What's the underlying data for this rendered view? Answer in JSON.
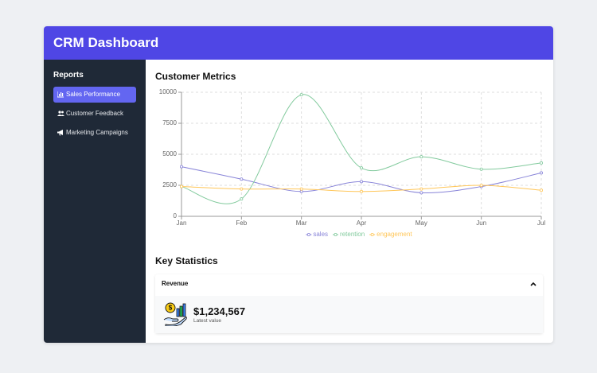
{
  "header": {
    "title": "CRM Dashboard"
  },
  "sidebar": {
    "title": "Reports",
    "items": [
      "Sales Performance",
      "Customer Feedback",
      "Marketing Campaigns"
    ],
    "active": 0
  },
  "chart_data": {
    "type": "line",
    "title": "Customer Metrics",
    "categories": [
      "Jan",
      "Feb",
      "Mar",
      "Apr",
      "May",
      "Jun",
      "Jul"
    ],
    "series": [
      {
        "name": "sales",
        "color": "#8884d8",
        "values": [
          4000,
          3000,
          2000,
          2800,
          1900,
          2400,
          3500
        ]
      },
      {
        "name": "retention",
        "color": "#82ca9d",
        "values": [
          2400,
          1400,
          9800,
          3900,
          4800,
          3800,
          4300
        ]
      },
      {
        "name": "engagement",
        "color": "#ffc658",
        "values": [
          2400,
          2200,
          2200,
          2000,
          2200,
          2500,
          2100
        ]
      }
    ],
    "ylim": [
      0,
      10000
    ],
    "yticks": [
      0,
      2500,
      5000,
      7500,
      10000
    ],
    "grid": true,
    "legend": "bottom"
  },
  "stats": {
    "title": "Key Statistics",
    "card": {
      "title": "Revenue",
      "value": "$1,234,567",
      "caption": "Latest value"
    }
  }
}
